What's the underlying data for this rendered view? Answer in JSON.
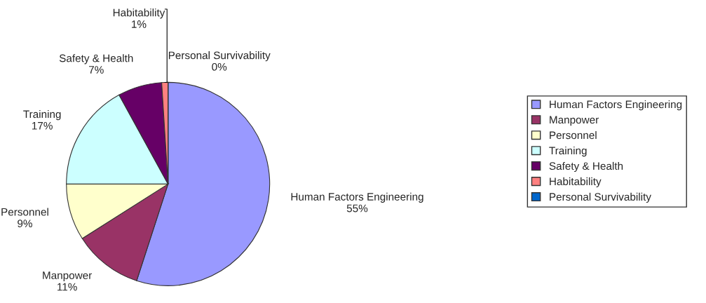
{
  "chart_data": {
    "type": "pie",
    "categories": [
      "Human Factors Engineering",
      "Manpower",
      "Personnel",
      "Training",
      "Safety & Health",
      "Habitability",
      "Personal Survivability"
    ],
    "values": [
      55,
      11,
      9,
      17,
      7,
      1,
      0
    ],
    "value_labels": [
      "55%",
      "11%",
      "9%",
      "17%",
      "7%",
      "1%",
      "0%"
    ],
    "colors": [
      "#9999ff",
      "#993366",
      "#ffffcc",
      "#ccffff",
      "#660066",
      "#ff8080",
      "#0066cc"
    ],
    "legend": "right"
  }
}
